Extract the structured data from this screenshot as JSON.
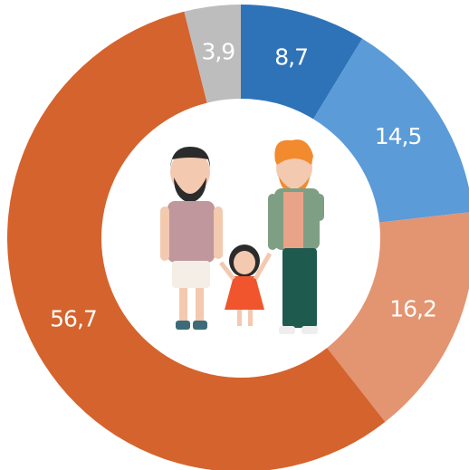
{
  "chart_data": {
    "type": "pie",
    "values": [
      8.7,
      14.5,
      16.2,
      56.7,
      3.9
    ],
    "value_labels": [
      "8,7",
      "14,5",
      "16,2",
      "56,7",
      "3,9"
    ],
    "colors": [
      "#2e73b8",
      "#5b9bd8",
      "#e39470",
      "#d5632d",
      "#bdbdbd"
    ]
  }
}
